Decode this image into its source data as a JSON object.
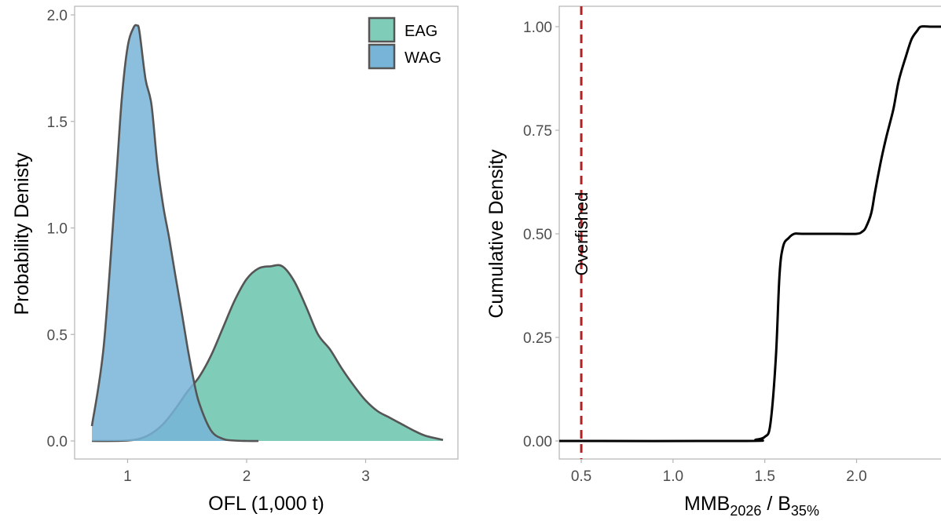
{
  "chart_data": [
    {
      "type": "area",
      "xlabel": "OFL (1,000 t)",
      "ylabel": "Probability Denisty",
      "xlim": [
        0.7,
        3.65
      ],
      "ylim": [
        0,
        2.0
      ],
      "x_ticks": [
        1,
        2,
        3
      ],
      "x_tick_labels": [
        "1",
        "2",
        "3"
      ],
      "y_ticks": [
        0,
        0.5,
        1.0,
        1.5,
        2.0
      ],
      "y_tick_labels": [
        "0.0",
        "0.5",
        "1.0",
        "1.5",
        "2.0"
      ],
      "grid": false,
      "legend_position": "top-right",
      "series": [
        {
          "name": "EAG",
          "color": "#7fcdb8",
          "x": [
            0.7,
            0.9,
            1.0,
            1.1,
            1.2,
            1.3,
            1.4,
            1.5,
            1.6,
            1.7,
            1.8,
            1.9,
            2.0,
            2.1,
            2.2,
            2.3,
            2.4,
            2.5,
            2.6,
            2.7,
            2.8,
            2.9,
            3.0,
            3.1,
            3.2,
            3.3,
            3.4,
            3.5,
            3.65
          ],
          "values": [
            0.0,
            0.0,
            0.002,
            0.01,
            0.035,
            0.08,
            0.15,
            0.23,
            0.3,
            0.4,
            0.53,
            0.66,
            0.76,
            0.81,
            0.82,
            0.82,
            0.75,
            0.63,
            0.5,
            0.43,
            0.34,
            0.26,
            0.19,
            0.14,
            0.11,
            0.08,
            0.05,
            0.025,
            0.005
          ]
        },
        {
          "name": "WAG",
          "color": "#78b4d7",
          "x": [
            0.7,
            0.8,
            0.9,
            0.95,
            1.0,
            1.05,
            1.08,
            1.1,
            1.15,
            1.2,
            1.25,
            1.3,
            1.35,
            1.4,
            1.45,
            1.5,
            1.55,
            1.6,
            1.7,
            1.8,
            1.9,
            2.0,
            2.1
          ],
          "values": [
            0.07,
            0.45,
            1.2,
            1.6,
            1.85,
            1.94,
            1.95,
            1.92,
            1.7,
            1.58,
            1.3,
            1.1,
            0.95,
            0.78,
            0.62,
            0.45,
            0.3,
            0.18,
            0.05,
            0.01,
            0.002,
            0.0,
            0.0
          ]
        }
      ]
    },
    {
      "type": "line",
      "xlabel": "MMB",
      "xlabel_sub1": "2026",
      "xlabel_mid": " / B",
      "xlabel_sub2": "35%",
      "ylabel": "Cumulative Density",
      "xlim": [
        0.38,
        2.46
      ],
      "ylim": [
        0,
        1.0
      ],
      "x_ticks": [
        0.5,
        1.0,
        1.5,
        2.0
      ],
      "x_tick_labels": [
        "0.5",
        "1.0",
        "1.5",
        "2.0"
      ],
      "y_ticks": [
        0,
        0.25,
        0.5,
        0.75,
        1.0
      ],
      "y_tick_labels": [
        "0.00",
        "0.25",
        "0.50",
        "0.75",
        "1.00"
      ],
      "grid": false,
      "series": [
        {
          "color": "#000000",
          "x": [
            0.38,
            1.4,
            1.45,
            1.5,
            1.53,
            1.56,
            1.58,
            1.6,
            1.63,
            1.66,
            1.7,
            1.8,
            1.9,
            2.0,
            2.03,
            2.05,
            2.08,
            2.1,
            2.13,
            2.16,
            2.2,
            2.23,
            2.27,
            2.3,
            2.33,
            2.35,
            2.4,
            2.46
          ],
          "values": [
            0.0,
            0.0,
            0.003,
            0.01,
            0.04,
            0.2,
            0.4,
            0.47,
            0.49,
            0.5,
            0.5,
            0.5,
            0.5,
            0.5,
            0.505,
            0.515,
            0.55,
            0.6,
            0.67,
            0.73,
            0.8,
            0.87,
            0.93,
            0.97,
            0.99,
            1.0,
            1.0,
            1.0
          ]
        }
      ],
      "reference_line": {
        "x": 0.5,
        "color": "#b22222",
        "label": "Overfished"
      }
    }
  ]
}
